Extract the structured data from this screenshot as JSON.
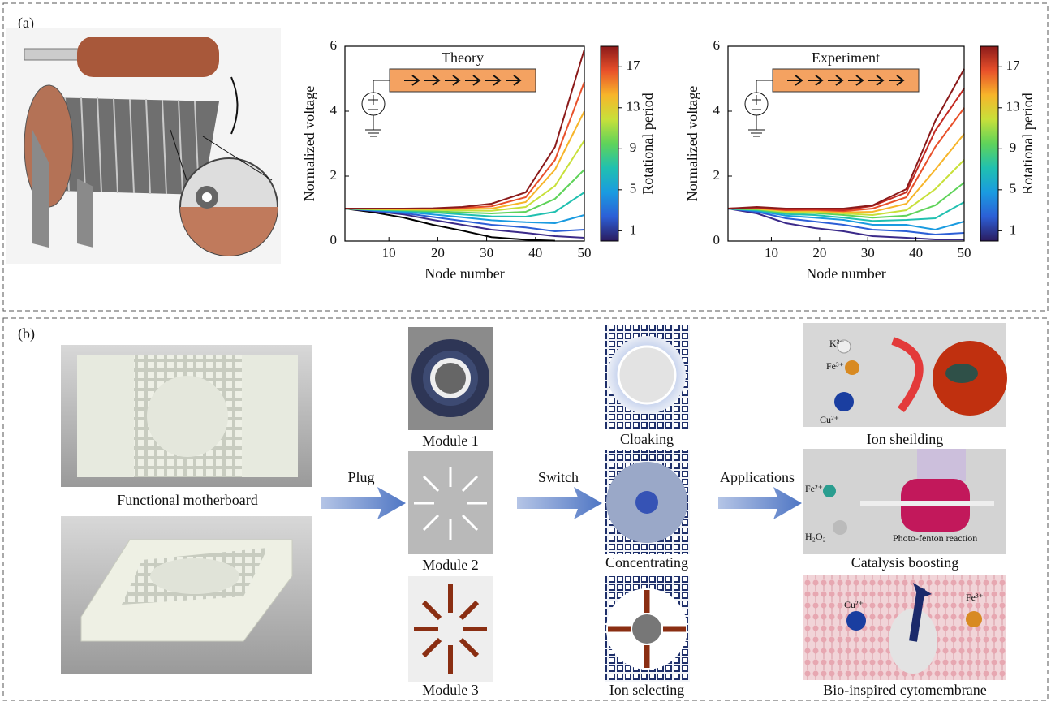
{
  "panel_labels": [
    "(a)",
    "(b)"
  ],
  "chart_data": [
    {
      "type": "line",
      "annotation": "Theory",
      "x_label": "Node number",
      "y_label": "Normalized voltage",
      "x": [
        1,
        7,
        13,
        19,
        25,
        31,
        38,
        44,
        50
      ],
      "xlim": [
        1,
        50
      ],
      "xticks": [
        10,
        20,
        30,
        40,
        50
      ],
      "ylim": [
        0,
        6
      ],
      "yticks": [
        0,
        2,
        4,
        6
      ],
      "grid": false,
      "series": [
        {
          "color": "#000000",
          "values": [
            1,
            0.88,
            0.72,
            0.5,
            0.32,
            0.12,
            0.04,
            0.01,
            null
          ]
        },
        {
          "color": "#3b2a8a",
          "values": [
            1,
            0.92,
            0.82,
            0.65,
            0.5,
            0.35,
            0.25,
            0.15,
            0.1
          ]
        },
        {
          "color": "#2c5fd6",
          "values": [
            1,
            0.93,
            0.86,
            0.74,
            0.62,
            0.5,
            0.42,
            0.3,
            0.35
          ]
        },
        {
          "color": "#1a9be0",
          "values": [
            1,
            0.95,
            0.9,
            0.82,
            0.73,
            0.64,
            0.58,
            0.55,
            0.8
          ]
        },
        {
          "color": "#20c0b0",
          "values": [
            1,
            0.96,
            0.93,
            0.88,
            0.82,
            0.76,
            0.75,
            0.9,
            1.5
          ]
        },
        {
          "color": "#5fd35a",
          "values": [
            1,
            0.97,
            0.95,
            0.92,
            0.88,
            0.85,
            0.9,
            1.3,
            2.2
          ]
        },
        {
          "color": "#c8e03a",
          "values": [
            1,
            0.98,
            0.97,
            0.96,
            0.94,
            0.93,
            1.05,
            1.7,
            3.1
          ]
        },
        {
          "color": "#f7b52a",
          "values": [
            1,
            0.99,
            0.98,
            0.98,
            0.99,
            1.0,
            1.2,
            2.2,
            4.0
          ]
        },
        {
          "color": "#e8502a",
          "values": [
            1,
            1.0,
            1.0,
            1.0,
            1.02,
            1.07,
            1.35,
            2.5,
            4.9
          ]
        },
        {
          "color": "#8b1a1a",
          "values": [
            1,
            1.0,
            1.0,
            1.01,
            1.05,
            1.15,
            1.5,
            2.9,
            5.9
          ]
        }
      ],
      "colorbar": {
        "label": "Rotational period",
        "lim": [
          0,
          19
        ],
        "ticks": [
          1,
          5,
          9,
          13,
          17
        ],
        "colors": [
          "#2b1b5e",
          "#2c5fd6",
          "#1a9be0",
          "#20c0b0",
          "#5fd35a",
          "#c8e03a",
          "#f7b52a",
          "#e8502a",
          "#8b1a1a"
        ]
      }
    },
    {
      "type": "line",
      "annotation": "Experiment",
      "x_label": "Node number",
      "y_label": "Normalized voltage",
      "x": [
        1,
        7,
        13,
        19,
        25,
        31,
        38,
        44,
        50
      ],
      "xlim": [
        1,
        50
      ],
      "xticks": [
        10,
        20,
        30,
        40,
        50
      ],
      "ylim": [
        0,
        6
      ],
      "yticks": [
        0,
        2,
        4,
        6
      ],
      "grid": false,
      "series": [
        {
          "color": "#3b2a8a",
          "values": [
            1,
            0.85,
            0.55,
            0.4,
            0.3,
            0.15,
            0.1,
            0.05,
            0.05
          ]
        },
        {
          "color": "#2c5fd6",
          "values": [
            1,
            0.9,
            0.7,
            0.6,
            0.5,
            0.35,
            0.3,
            0.2,
            0.25
          ]
        },
        {
          "color": "#1a9be0",
          "values": [
            1,
            0.93,
            0.78,
            0.72,
            0.65,
            0.5,
            0.5,
            0.35,
            0.6
          ]
        },
        {
          "color": "#20c0b0",
          "values": [
            1,
            0.95,
            0.83,
            0.8,
            0.72,
            0.62,
            0.65,
            0.7,
            1.2
          ]
        },
        {
          "color": "#5fd35a",
          "values": [
            1,
            0.97,
            0.87,
            0.86,
            0.8,
            0.72,
            0.78,
            1.1,
            1.8
          ]
        },
        {
          "color": "#c8e03a",
          "values": [
            1,
            0.99,
            0.9,
            0.9,
            0.85,
            0.8,
            0.95,
            1.6,
            2.5
          ]
        },
        {
          "color": "#f7b52a",
          "values": [
            1,
            1.0,
            0.93,
            0.93,
            0.88,
            0.9,
            1.15,
            2.2,
            3.3
          ]
        },
        {
          "color": "#e8502a",
          "values": [
            1,
            1.02,
            0.95,
            0.96,
            0.92,
            1.0,
            1.35,
            2.9,
            4.1
          ]
        },
        {
          "color": "#c42a22",
          "values": [
            1,
            1.03,
            0.97,
            0.98,
            0.95,
            1.08,
            1.5,
            3.4,
            4.7
          ]
        },
        {
          "color": "#8b1a1a",
          "values": [
            1,
            1.05,
            1.0,
            1.0,
            1.0,
            1.1,
            1.6,
            3.7,
            5.3
          ]
        }
      ],
      "colorbar": {
        "label": "Rotational period",
        "lim": [
          0,
          19
        ],
        "ticks": [
          1,
          5,
          9,
          13,
          17
        ],
        "colors": [
          "#2b1b5e",
          "#2c5fd6",
          "#1a9be0",
          "#20c0b0",
          "#5fd35a",
          "#c8e03a",
          "#f7b52a",
          "#e8502a",
          "#8b1a1a"
        ]
      }
    }
  ],
  "panel_b": {
    "motherboard": "Functional motherboard",
    "arrows": [
      "Plug",
      "Switch",
      "Applications"
    ],
    "modules": [
      "Module 1",
      "Module 2",
      "Module 3"
    ],
    "functions": [
      "Cloaking",
      "Concentrating",
      "Ion selecting"
    ],
    "applications": [
      "Ion sheilding",
      "Catalysis boosting",
      "Bio-inspired cytomembrane"
    ],
    "ion_labels": {
      "shielding": [
        "K²⁺",
        "Fe³⁺",
        "Cu²⁺"
      ],
      "catalysis": [
        "Fe²⁺",
        "H₂O₂",
        "Photo-fenton reaction"
      ],
      "membrane": [
        "Cu²⁺",
        "Fe³⁺"
      ]
    }
  }
}
